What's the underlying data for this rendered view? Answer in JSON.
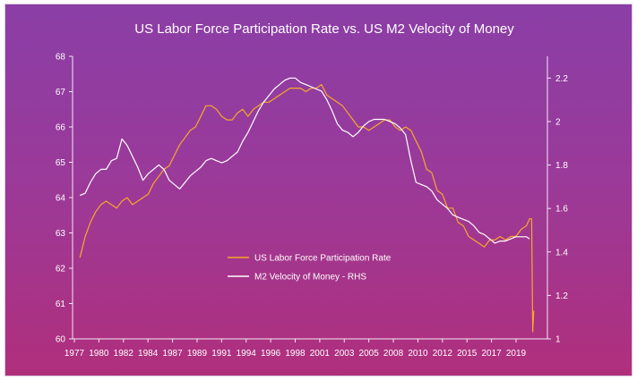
{
  "chart_data": {
    "type": "line",
    "title": "US Labor Force Participation Rate vs. US M2 Velocity of Money",
    "x_ticks": [
      "1977",
      "1980",
      "1982",
      "1984",
      "1987",
      "1989",
      "1991",
      "1994",
      "1996",
      "1998",
      "2001",
      "2003",
      "2005",
      "2008",
      "2010",
      "2012",
      "2015",
      "2017",
      "2019"
    ],
    "y_left": {
      "min": 60,
      "max": 68,
      "ticks": [
        "60",
        "61",
        "62",
        "63",
        "64",
        "65",
        "66",
        "67",
        "68"
      ]
    },
    "y_right": {
      "min": 1.0,
      "max": 2.3,
      "ticks": [
        "1",
        "1.2",
        "1.4",
        "1.6",
        "1.8",
        "2",
        "2.2"
      ]
    },
    "grid": false,
    "legend_position": "center",
    "series": [
      {
        "name": "US Labor Force Participation Rate",
        "axis": "left",
        "color": "#f7a828",
        "x": [
          1977.0,
          1977.5,
          1978.0,
          1978.5,
          1979.0,
          1979.5,
          1980.0,
          1980.5,
          1981.0,
          1981.5,
          1982.0,
          1982.5,
          1983.0,
          1983.5,
          1984.0,
          1984.5,
          1985.0,
          1985.5,
          1986.0,
          1986.5,
          1987.0,
          1987.5,
          1988.0,
          1988.5,
          1989.0,
          1989.5,
          1990.0,
          1990.5,
          1991.0,
          1991.5,
          1992.0,
          1992.5,
          1993.0,
          1993.5,
          1994.0,
          1994.5,
          1995.0,
          1995.5,
          1996.0,
          1996.5,
          1997.0,
          1997.5,
          1998.0,
          1998.5,
          1999.0,
          1999.5,
          2000.0,
          2000.5,
          2001.0,
          2001.5,
          2002.0,
          2002.5,
          2003.0,
          2003.5,
          2004.0,
          2004.5,
          2005.0,
          2005.5,
          2006.0,
          2006.5,
          2007.0,
          2007.5,
          2008.0,
          2008.5,
          2009.0,
          2009.5,
          2010.0,
          2010.5,
          2011.0,
          2011.5,
          2012.0,
          2012.5,
          2013.0,
          2013.5,
          2014.0,
          2014.5,
          2015.0,
          2015.5,
          2016.0,
          2016.5,
          2017.0,
          2017.5,
          2018.0,
          2018.5,
          2019.0,
          2019.5,
          2019.8,
          2020.0,
          2020.1,
          2020.2
        ],
        "values": [
          62.3,
          62.9,
          63.3,
          63.6,
          63.8,
          63.9,
          63.8,
          63.7,
          63.9,
          64.0,
          63.8,
          63.9,
          64.0,
          64.1,
          64.4,
          64.6,
          64.8,
          64.9,
          65.2,
          65.5,
          65.7,
          65.9,
          66.0,
          66.3,
          66.6,
          66.6,
          66.5,
          66.3,
          66.2,
          66.2,
          66.4,
          66.5,
          66.3,
          66.5,
          66.6,
          66.7,
          66.7,
          66.8,
          66.9,
          67.0,
          67.1,
          67.1,
          67.1,
          67.0,
          67.1,
          67.1,
          67.2,
          66.9,
          66.8,
          66.7,
          66.6,
          66.4,
          66.2,
          66.0,
          66.0,
          65.9,
          66.0,
          66.1,
          66.2,
          66.2,
          66.0,
          65.9,
          66.0,
          65.9,
          65.6,
          65.3,
          64.8,
          64.7,
          64.2,
          64.1,
          63.7,
          63.7,
          63.3,
          63.2,
          62.9,
          62.8,
          62.7,
          62.6,
          62.8,
          62.8,
          62.9,
          62.8,
          62.9,
          62.9,
          63.1,
          63.2,
          63.4,
          63.4,
          60.2,
          60.8
        ]
      },
      {
        "name": "M2 Velocity of Money - RHS",
        "axis": "right",
        "color": "#ffffff",
        "x": [
          1977.0,
          1977.5,
          1978.0,
          1978.5,
          1979.0,
          1979.5,
          1980.0,
          1980.5,
          1981.0,
          1981.5,
          1982.0,
          1982.5,
          1983.0,
          1983.5,
          1984.0,
          1984.5,
          1985.0,
          1985.5,
          1986.0,
          1986.5,
          1987.0,
          1987.5,
          1988.0,
          1988.5,
          1989.0,
          1989.5,
          1990.0,
          1990.5,
          1991.0,
          1991.5,
          1992.0,
          1992.5,
          1993.0,
          1993.5,
          1994.0,
          1994.5,
          1995.0,
          1995.5,
          1996.0,
          1996.5,
          1997.0,
          1997.5,
          1998.0,
          1998.5,
          1999.0,
          1999.5,
          2000.0,
          2000.5,
          2001.0,
          2001.5,
          2002.0,
          2002.5,
          2003.0,
          2003.5,
          2004.0,
          2004.5,
          2005.0,
          2005.5,
          2006.0,
          2006.5,
          2007.0,
          2007.5,
          2008.0,
          2008.5,
          2009.0,
          2009.5,
          2010.0,
          2010.5,
          2011.0,
          2011.5,
          2012.0,
          2012.5,
          2013.0,
          2013.5,
          2014.0,
          2014.5,
          2015.0,
          2015.5,
          2016.0,
          2016.5,
          2017.0,
          2017.5,
          2018.0,
          2018.5,
          2019.0,
          2019.5,
          2019.8
        ],
        "values": [
          1.66,
          1.67,
          1.72,
          1.76,
          1.78,
          1.78,
          1.82,
          1.83,
          1.92,
          1.89,
          1.84,
          1.79,
          1.73,
          1.76,
          1.78,
          1.8,
          1.78,
          1.73,
          1.71,
          1.69,
          1.72,
          1.75,
          1.77,
          1.79,
          1.82,
          1.83,
          1.82,
          1.81,
          1.82,
          1.84,
          1.86,
          1.91,
          1.95,
          2.0,
          2.05,
          2.09,
          2.12,
          2.15,
          2.17,
          2.19,
          2.2,
          2.2,
          2.18,
          2.17,
          2.16,
          2.15,
          2.14,
          2.1,
          2.05,
          1.99,
          1.96,
          1.95,
          1.93,
          1.95,
          1.98,
          2.0,
          2.01,
          2.01,
          2.01,
          2.0,
          1.99,
          1.97,
          1.94,
          1.82,
          1.72,
          1.71,
          1.7,
          1.68,
          1.64,
          1.62,
          1.6,
          1.57,
          1.56,
          1.55,
          1.54,
          1.52,
          1.49,
          1.48,
          1.46,
          1.44,
          1.45,
          1.45,
          1.46,
          1.47,
          1.47,
          1.47,
          1.46
        ]
      }
    ]
  }
}
